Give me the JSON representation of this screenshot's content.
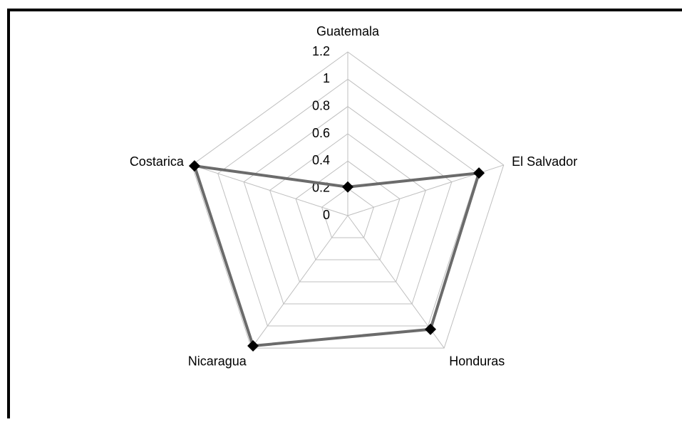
{
  "chart_data": {
    "type": "radar",
    "categories": [
      "Guatemala",
      "El Salvador",
      "Honduras",
      "Nicaragua",
      "Costarica"
    ],
    "series": [
      {
        "color": "#6b6b6b",
        "values": [
          0.21,
          1.01,
          1.03,
          1.18,
          1.18
        ]
      }
    ],
    "ylim": [
      0,
      1.2
    ],
    "yticks": [
      0,
      0.2,
      0.4,
      0.6,
      0.8,
      1,
      1.2
    ],
    "grid": true
  }
}
